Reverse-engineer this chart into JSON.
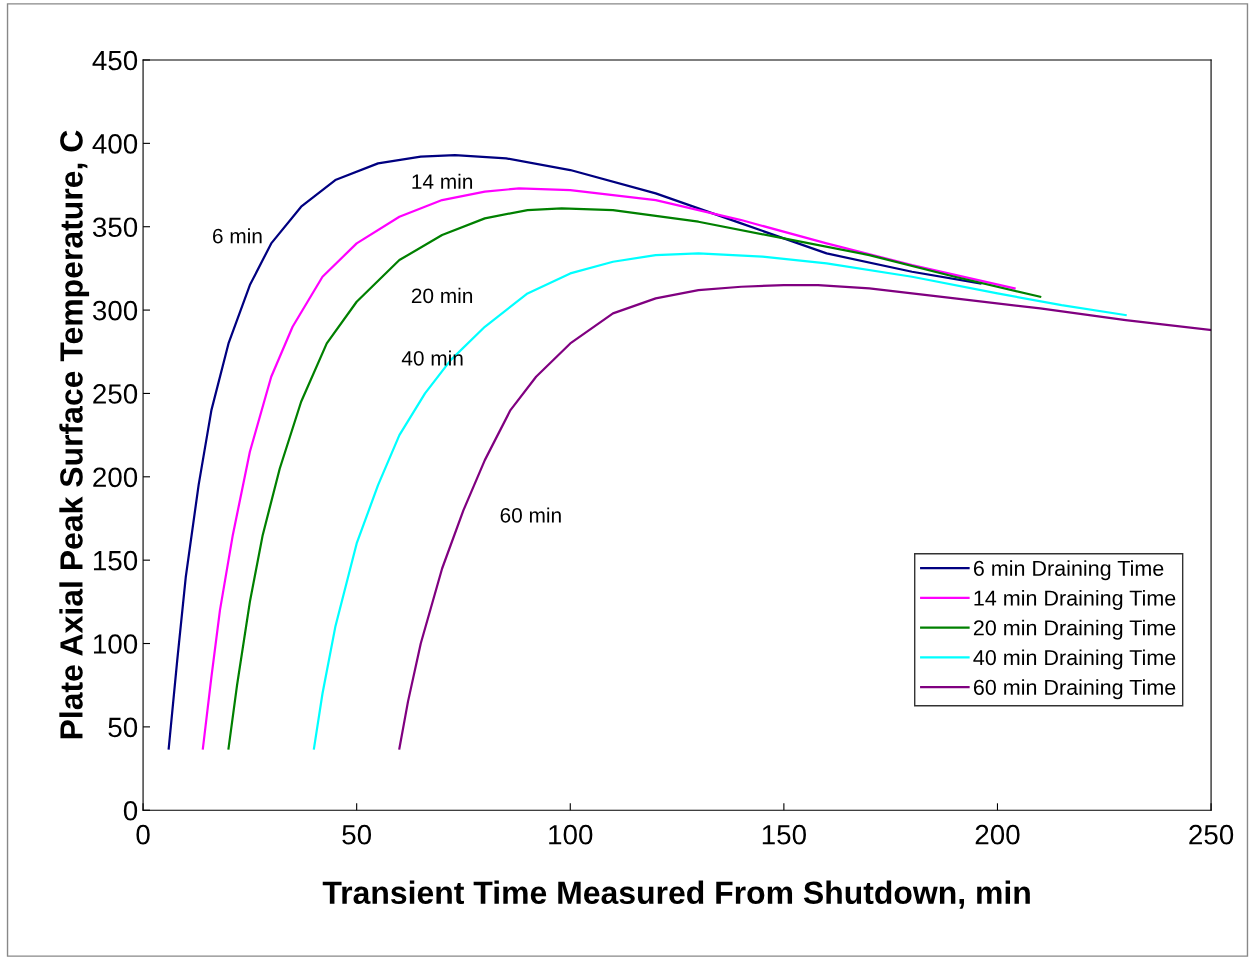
{
  "chart_data": {
    "type": "line",
    "xlabel": "Transient Time Measured From Shutdown, min",
    "ylabel": "Plate Axial Peak Surface Temperature, C",
    "xlim": [
      0,
      250
    ],
    "xticks": [
      0,
      50,
      100,
      150,
      200,
      250
    ],
    "ylim": [
      0,
      450
    ],
    "yticks": [
      0,
      50,
      100,
      150,
      200,
      250,
      300,
      350,
      400,
      450
    ],
    "grid": false,
    "legend": "bottom right",
    "marker": "none",
    "line_style": "solid",
    "series": [
      {
        "name": "6 min Draining Time",
        "color": "#000080",
        "x": [
          6,
          8,
          10,
          13,
          16,
          20,
          25,
          30,
          37,
          45,
          55,
          65,
          73,
          85,
          100,
          120,
          140,
          160,
          180,
          196
        ],
        "values": [
          37,
          90,
          140,
          195,
          240,
          280,
          315,
          340,
          362,
          378,
          388,
          392,
          393,
          391,
          384,
          370,
          352,
          334,
          323,
          316
        ]
      },
      {
        "name": "14 min Draining Time",
        "color": "#ff00ff",
        "x": [
          14,
          16,
          18,
          21,
          25,
          30,
          35,
          42,
          50,
          60,
          70,
          80,
          88,
          100,
          120,
          140,
          160,
          180,
          204
        ],
        "values": [
          37,
          80,
          120,
          165,
          215,
          260,
          290,
          320,
          340,
          356,
          366,
          371,
          373,
          372,
          366,
          354,
          340,
          327,
          313
        ]
      },
      {
        "name": "20 min Draining Time",
        "color": "#008000",
        "x": [
          20,
          22,
          25,
          28,
          32,
          37,
          43,
          50,
          60,
          70,
          80,
          90,
          98,
          110,
          130,
          150,
          170,
          190,
          210
        ],
        "values": [
          37,
          75,
          125,
          165,
          205,
          245,
          280,
          305,
          330,
          345,
          355,
          360,
          361,
          360,
          353,
          343,
          333,
          320,
          308
        ]
      },
      {
        "name": "40 min Draining Time",
        "color": "#00ffff",
        "x": [
          40,
          42,
          45,
          50,
          55,
          60,
          66,
          72,
          80,
          90,
          100,
          110,
          120,
          130,
          145,
          160,
          180,
          200,
          215,
          230
        ],
        "values": [
          37,
          70,
          110,
          160,
          195,
          225,
          250,
          270,
          290,
          310,
          322,
          329,
          333,
          334,
          332,
          328,
          320,
          310,
          303,
          297
        ]
      },
      {
        "name": "60 min Draining Time",
        "color": "#800080",
        "x": [
          60,
          62,
          65,
          70,
          75,
          80,
          86,
          92,
          100,
          110,
          120,
          130,
          140,
          150,
          158,
          170,
          190,
          210,
          230,
          250
        ],
        "values": [
          37,
          65,
          100,
          145,
          180,
          210,
          240,
          260,
          280,
          298,
          307,
          312,
          314,
          315,
          315,
          313,
          307,
          301,
          294,
          288
        ]
      }
    ],
    "annotations": [
      {
        "text": "6 min",
        "x": 30,
        "y": 340
      },
      {
        "text": "14 min",
        "x": 70,
        "y": 366
      },
      {
        "text": "20 min",
        "x": 70,
        "y": 345
      },
      {
        "text": "40 min",
        "x": 72,
        "y": 270
      },
      {
        "text": "60 min",
        "x": 75,
        "y": 180
      }
    ]
  }
}
